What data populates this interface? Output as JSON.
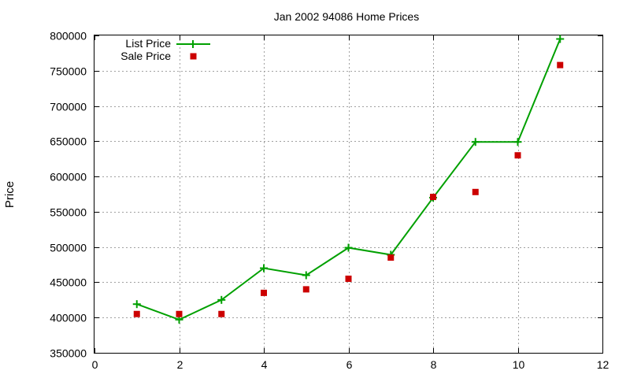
{
  "chart_data": {
    "type": "line",
    "title": "Jan 2002 94086 Home Prices",
    "xlabel": "",
    "ylabel": "Price",
    "xlim": [
      0,
      12
    ],
    "ylim": [
      350000,
      800000
    ],
    "xticks": [
      0,
      2,
      4,
      6,
      8,
      10,
      12
    ],
    "yticks": [
      350000,
      400000,
      450000,
      500000,
      550000,
      600000,
      650000,
      700000,
      750000,
      800000
    ],
    "grid": true,
    "legend_position": "top-left",
    "series": [
      {
        "name": "List Price",
        "style": "line with plus markers",
        "color": "#00a000",
        "x": [
          1,
          2,
          3,
          4,
          5,
          6,
          7,
          8,
          9,
          10,
          11
        ],
        "y": [
          419000,
          397000,
          425000,
          470000,
          460000,
          499000,
          489000,
          570000,
          649000,
          649000,
          795000
        ]
      },
      {
        "name": "Sale Price",
        "style": "square markers",
        "color": "#cc0000",
        "x": [
          1,
          2,
          3,
          4,
          5,
          6,
          7,
          8,
          9,
          10,
          11
        ],
        "y": [
          405000,
          405000,
          405000,
          435000,
          440000,
          455000,
          485000,
          571000,
          578000,
          630000,
          758000
        ]
      }
    ]
  }
}
